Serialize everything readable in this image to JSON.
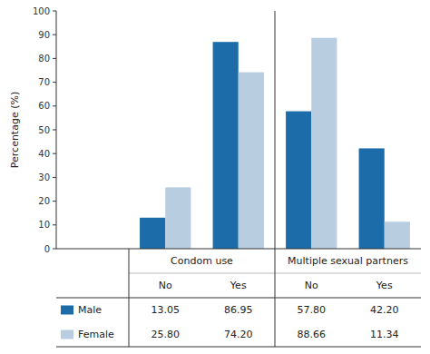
{
  "chart_data": {
    "type": "bar",
    "ylabel": "Percentage (%)",
    "categories": [
      "No",
      "Yes",
      "No",
      "Yes"
    ],
    "category_groups": [
      "Condom use",
      "Multiple sexual partners"
    ],
    "series": [
      {
        "name": "Male",
        "color": "#1b6ca8",
        "values": [
          13.05,
          86.95,
          57.8,
          42.2
        ],
        "value_labels": [
          "13.05",
          "86.95",
          "57.80",
          "42.20"
        ]
      },
      {
        "name": "Female",
        "color": "#b8cde0",
        "values": [
          25.8,
          74.2,
          88.66,
          11.34
        ],
        "value_labels": [
          "25.80",
          "74.20",
          "88.66",
          "11.34"
        ]
      }
    ],
    "ylim": [
      0,
      100
    ],
    "yticks": [
      0,
      10,
      20,
      30,
      40,
      50,
      60,
      70,
      80,
      90,
      100
    ],
    "grid": false
  }
}
